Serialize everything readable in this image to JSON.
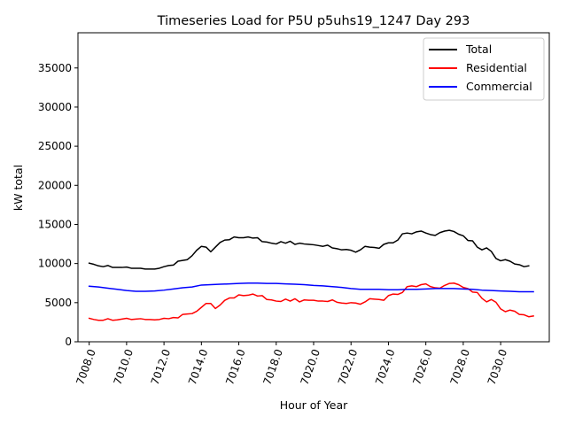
{
  "chart_data": {
    "type": "line",
    "title": "Timeseries Load for P5U p5uhs19_1247  Day 293",
    "xlabel": "Hour of Year",
    "ylabel": "kW total",
    "xlim": [
      7007.4,
      7032.6
    ],
    "ylim": [
      0,
      39500
    ],
    "xticks": [
      7008,
      7010,
      7012,
      7014,
      7016,
      7018,
      7020,
      7022,
      7024,
      7026,
      7028,
      7030
    ],
    "xtick_labels": [
      "7008.0",
      "7010.0",
      "7012.0",
      "7014.0",
      "7016.0",
      "7018.0",
      "7020.0",
      "7022.0",
      "7024.0",
      "7026.0",
      "7028.0",
      "7030.0"
    ],
    "yticks": [
      0,
      5000,
      10000,
      15000,
      20000,
      25000,
      30000,
      35000
    ],
    "ytick_labels": [
      "0",
      "5000",
      "10000",
      "15000",
      "20000",
      "25000",
      "30000",
      "35000"
    ],
    "legend_position": "top-right",
    "grid": false,
    "series": [
      {
        "name": "Total",
        "color": "#000000",
        "points": [
          [
            7008.0,
            10050
          ],
          [
            7008.25,
            9900
          ],
          [
            7008.5,
            9700
          ],
          [
            7008.75,
            9600
          ],
          [
            7009.0,
            9750
          ],
          [
            7009.25,
            9500
          ],
          [
            7009.5,
            9500
          ],
          [
            7009.75,
            9500
          ],
          [
            7010.0,
            9550
          ],
          [
            7010.25,
            9400
          ],
          [
            7010.5,
            9400
          ],
          [
            7010.75,
            9400
          ],
          [
            7011.0,
            9300
          ],
          [
            7011.25,
            9300
          ],
          [
            7011.5,
            9300
          ],
          [
            7011.75,
            9400
          ],
          [
            7012.0,
            9600
          ],
          [
            7012.25,
            9750
          ],
          [
            7012.5,
            9800
          ],
          [
            7012.75,
            10300
          ],
          [
            7013.0,
            10400
          ],
          [
            7013.25,
            10500
          ],
          [
            7013.5,
            11000
          ],
          [
            7013.75,
            11700
          ],
          [
            7014.0,
            12200
          ],
          [
            7014.25,
            12100
          ],
          [
            7014.5,
            11500
          ],
          [
            7014.75,
            12100
          ],
          [
            7015.0,
            12700
          ],
          [
            7015.25,
            13000
          ],
          [
            7015.5,
            13050
          ],
          [
            7015.75,
            13400
          ],
          [
            7016.0,
            13300
          ],
          [
            7016.25,
            13300
          ],
          [
            7016.5,
            13400
          ],
          [
            7016.75,
            13250
          ],
          [
            7017.0,
            13300
          ],
          [
            7017.25,
            12800
          ],
          [
            7017.5,
            12750
          ],
          [
            7017.75,
            12600
          ],
          [
            7018.0,
            12500
          ],
          [
            7018.25,
            12800
          ],
          [
            7018.5,
            12600
          ],
          [
            7018.75,
            12850
          ],
          [
            7019.0,
            12450
          ],
          [
            7019.25,
            12600
          ],
          [
            7019.5,
            12500
          ],
          [
            7019.75,
            12450
          ],
          [
            7020.0,
            12400
          ],
          [
            7020.25,
            12300
          ],
          [
            7020.5,
            12200
          ],
          [
            7020.75,
            12350
          ],
          [
            7021.0,
            12000
          ],
          [
            7021.25,
            11900
          ],
          [
            7021.5,
            11750
          ],
          [
            7021.75,
            11800
          ],
          [
            7022.0,
            11700
          ],
          [
            7022.25,
            11450
          ],
          [
            7022.5,
            11750
          ],
          [
            7022.75,
            12200
          ],
          [
            7023.0,
            12100
          ],
          [
            7023.25,
            12050
          ],
          [
            7023.5,
            11950
          ],
          [
            7023.75,
            12450
          ],
          [
            7024.0,
            12650
          ],
          [
            7024.25,
            12650
          ],
          [
            7024.5,
            13000
          ],
          [
            7024.75,
            13800
          ],
          [
            7025.0,
            13900
          ],
          [
            7025.25,
            13800
          ],
          [
            7025.5,
            14050
          ],
          [
            7025.75,
            14150
          ],
          [
            7026.0,
            13900
          ],
          [
            7026.25,
            13700
          ],
          [
            7026.5,
            13600
          ],
          [
            7026.75,
            13950
          ],
          [
            7027.0,
            14150
          ],
          [
            7027.25,
            14250
          ],
          [
            7027.5,
            14100
          ],
          [
            7027.75,
            13750
          ],
          [
            7028.0,
            13550
          ],
          [
            7028.25,
            12950
          ],
          [
            7028.5,
            12900
          ],
          [
            7028.75,
            12100
          ],
          [
            7029.0,
            11750
          ],
          [
            7029.25,
            12000
          ],
          [
            7029.5,
            11550
          ],
          [
            7029.75,
            10650
          ],
          [
            7030.0,
            10350
          ],
          [
            7030.25,
            10500
          ],
          [
            7030.5,
            10300
          ],
          [
            7030.75,
            9950
          ],
          [
            7031.0,
            9850
          ],
          [
            7031.25,
            9600
          ],
          [
            7031.5,
            9700
          ]
        ]
      },
      {
        "name": "Residential",
        "color": "#ff0000",
        "points": [
          [
            7008.0,
            3000
          ],
          [
            7008.25,
            2850
          ],
          [
            7008.5,
            2750
          ],
          [
            7008.75,
            2750
          ],
          [
            7009.0,
            2950
          ],
          [
            7009.25,
            2750
          ],
          [
            7009.5,
            2800
          ],
          [
            7009.75,
            2900
          ],
          [
            7010.0,
            3000
          ],
          [
            7010.25,
            2850
          ],
          [
            7010.5,
            2900
          ],
          [
            7010.75,
            2950
          ],
          [
            7011.0,
            2850
          ],
          [
            7011.25,
            2850
          ],
          [
            7011.5,
            2800
          ],
          [
            7011.75,
            2850
          ],
          [
            7012.0,
            3000
          ],
          [
            7012.25,
            2950
          ],
          [
            7012.5,
            3100
          ],
          [
            7012.75,
            3050
          ],
          [
            7013.0,
            3500
          ],
          [
            7013.25,
            3550
          ],
          [
            7013.5,
            3600
          ],
          [
            7013.75,
            3900
          ],
          [
            7014.0,
            4400
          ],
          [
            7014.25,
            4900
          ],
          [
            7014.5,
            4900
          ],
          [
            7014.75,
            4250
          ],
          [
            7015.0,
            4700
          ],
          [
            7015.25,
            5300
          ],
          [
            7015.5,
            5600
          ],
          [
            7015.75,
            5600
          ],
          [
            7016.0,
            6000
          ],
          [
            7016.25,
            5900
          ],
          [
            7016.5,
            5950
          ],
          [
            7016.75,
            6100
          ],
          [
            7017.0,
            5850
          ],
          [
            7017.25,
            5900
          ],
          [
            7017.5,
            5400
          ],
          [
            7017.75,
            5350
          ],
          [
            7018.0,
            5200
          ],
          [
            7018.25,
            5150
          ],
          [
            7018.5,
            5450
          ],
          [
            7018.75,
            5200
          ],
          [
            7019.0,
            5500
          ],
          [
            7019.25,
            5100
          ],
          [
            7019.5,
            5350
          ],
          [
            7019.75,
            5300
          ],
          [
            7020.0,
            5300
          ],
          [
            7020.25,
            5200
          ],
          [
            7020.5,
            5200
          ],
          [
            7020.75,
            5150
          ],
          [
            7021.0,
            5350
          ],
          [
            7021.25,
            5050
          ],
          [
            7021.5,
            4950
          ],
          [
            7021.75,
            4900
          ],
          [
            7022.0,
            5000
          ],
          [
            7022.25,
            4950
          ],
          [
            7022.5,
            4800
          ],
          [
            7022.75,
            5100
          ],
          [
            7023.0,
            5500
          ],
          [
            7023.25,
            5450
          ],
          [
            7023.5,
            5400
          ],
          [
            7023.75,
            5300
          ],
          [
            7024.0,
            5900
          ],
          [
            7024.25,
            6100
          ],
          [
            7024.5,
            6050
          ],
          [
            7024.75,
            6300
          ],
          [
            7025.0,
            7050
          ],
          [
            7025.25,
            7150
          ],
          [
            7025.5,
            7050
          ],
          [
            7025.75,
            7300
          ],
          [
            7026.0,
            7400
          ],
          [
            7026.25,
            7050
          ],
          [
            7026.5,
            6900
          ],
          [
            7026.75,
            6850
          ],
          [
            7027.0,
            7200
          ],
          [
            7027.25,
            7450
          ],
          [
            7027.5,
            7500
          ],
          [
            7027.75,
            7300
          ],
          [
            7028.0,
            6950
          ],
          [
            7028.25,
            6800
          ],
          [
            7028.5,
            6350
          ],
          [
            7028.75,
            6300
          ],
          [
            7029.0,
            5550
          ],
          [
            7029.25,
            5100
          ],
          [
            7029.5,
            5400
          ],
          [
            7029.75,
            5050
          ],
          [
            7030.0,
            4200
          ],
          [
            7030.25,
            3850
          ],
          [
            7030.5,
            4050
          ],
          [
            7030.75,
            3900
          ],
          [
            7031.0,
            3500
          ],
          [
            7031.25,
            3450
          ],
          [
            7031.5,
            3200
          ],
          [
            7031.75,
            3300
          ]
        ]
      },
      {
        "name": "Commercial",
        "color": "#0000ff",
        "points": [
          [
            7008.0,
            7100
          ],
          [
            7008.5,
            7000
          ],
          [
            7009.0,
            6850
          ],
          [
            7009.5,
            6700
          ],
          [
            7010.0,
            6550
          ],
          [
            7010.5,
            6450
          ],
          [
            7011.0,
            6450
          ],
          [
            7011.5,
            6500
          ],
          [
            7012.0,
            6600
          ],
          [
            7012.5,
            6750
          ],
          [
            7013.0,
            6900
          ],
          [
            7013.5,
            7000
          ],
          [
            7014.0,
            7250
          ],
          [
            7014.5,
            7300
          ],
          [
            7015.0,
            7350
          ],
          [
            7015.5,
            7400
          ],
          [
            7016.0,
            7450
          ],
          [
            7016.5,
            7500
          ],
          [
            7017.0,
            7500
          ],
          [
            7017.5,
            7450
          ],
          [
            7018.0,
            7450
          ],
          [
            7018.5,
            7400
          ],
          [
            7019.0,
            7350
          ],
          [
            7019.5,
            7300
          ],
          [
            7020.0,
            7200
          ],
          [
            7020.5,
            7150
          ],
          [
            7021.0,
            7050
          ],
          [
            7021.5,
            6950
          ],
          [
            7022.0,
            6800
          ],
          [
            7022.5,
            6700
          ],
          [
            7023.0,
            6700
          ],
          [
            7023.5,
            6700
          ],
          [
            7024.0,
            6650
          ],
          [
            7024.5,
            6650
          ],
          [
            7025.0,
            6700
          ],
          [
            7025.5,
            6700
          ],
          [
            7026.0,
            6750
          ],
          [
            7026.5,
            6800
          ],
          [
            7027.0,
            6800
          ],
          [
            7027.5,
            6800
          ],
          [
            7028.0,
            6750
          ],
          [
            7028.5,
            6700
          ],
          [
            7029.0,
            6600
          ],
          [
            7029.5,
            6550
          ],
          [
            7030.0,
            6500
          ],
          [
            7030.5,
            6450
          ],
          [
            7031.0,
            6400
          ],
          [
            7031.5,
            6400
          ],
          [
            7031.75,
            6400
          ]
        ]
      }
    ]
  }
}
